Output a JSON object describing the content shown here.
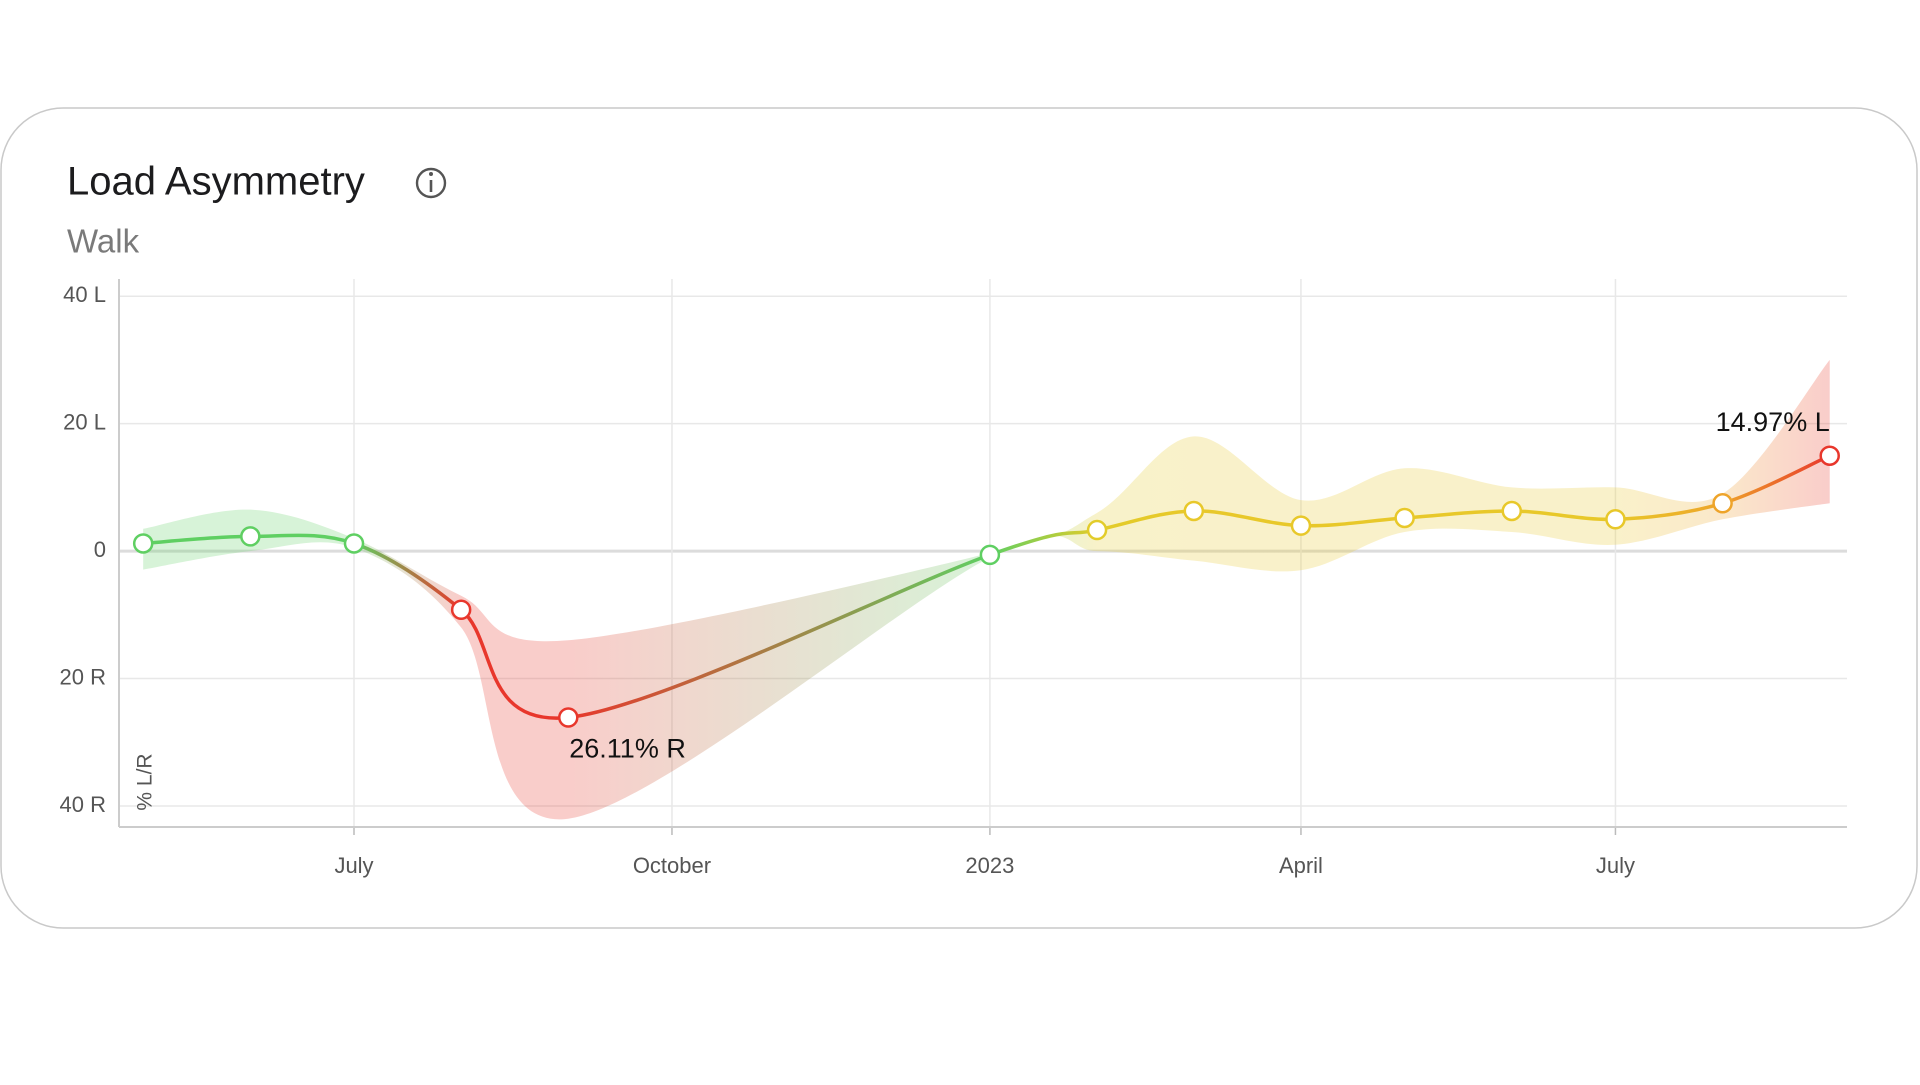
{
  "chart_data": {
    "type": "line",
    "title": "Load Asymmetry",
    "subtitle": "Walk",
    "ylabel": "% L/R",
    "x": [
      "2022-05",
      "2022-06",
      "2022-07",
      "2022-08",
      "2022-09",
      "2023-01",
      "2023-02",
      "2023-03",
      "2023-04",
      "2023-05",
      "2023-06",
      "2023-07",
      "2023-08",
      "2023-09"
    ],
    "series": [
      {
        "values": [
          1.2,
          2.3,
          1.2,
          -9.2,
          -26.11,
          -0.6,
          3.3,
          6.3,
          4.0,
          5.2,
          6.3,
          5.0,
          7.5,
          14.97
        ],
        "value_labels": [
          null,
          null,
          null,
          null,
          "26.11% R",
          null,
          null,
          null,
          null,
          null,
          null,
          null,
          null,
          "14.97% L"
        ],
        "upper": [
          3.5,
          6.5,
          2.0,
          -7,
          -14,
          -0.3,
          6,
          18,
          8,
          13,
          10,
          10,
          9,
          30
        ],
        "lower": [
          -2.9,
          0,
          0.5,
          -12,
          -42,
          -1,
          0,
          -1.5,
          -3,
          3,
          3,
          1,
          5,
          7.5
        ],
        "colors": [
          "#5fcf62",
          "#5fcf62",
          "#5fcf62",
          "#e8372c",
          "#e8372c",
          "#5fcf62",
          "#e2cc2a",
          "#e8c82a",
          "#e8c82a",
          "#e8c82a",
          "#e8c82a",
          "#e8c82a",
          "#eea42a",
          "#e8372c"
        ]
      }
    ],
    "xlim": [
      "2022-04-24",
      "2023-09-06"
    ],
    "xticks": [
      {
        "value": "2022-07",
        "label": "July"
      },
      {
        "value": "2022-10",
        "label": "October"
      },
      {
        "value": "2023-01",
        "label": "2023"
      },
      {
        "value": "2023-04",
        "label": "April"
      },
      {
        "value": "2023-07",
        "label": "July"
      }
    ],
    "ylim": [
      -43.3,
      42.7
    ],
    "yticks": [
      {
        "value": 40,
        "label": "40 L"
      },
      {
        "value": 20,
        "label": "20 L"
      },
      0,
      {
        "value": -20,
        "label": "20 R"
      },
      {
        "value": -40,
        "label": "40 R"
      }
    ],
    "grid": true
  }
}
